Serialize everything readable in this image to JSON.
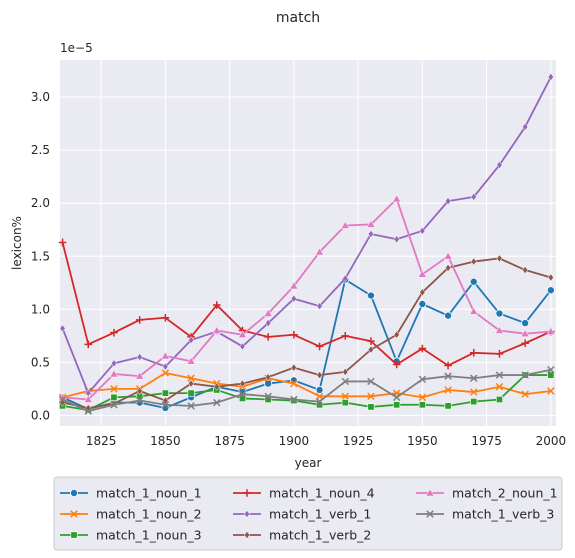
{
  "chart_data": {
    "type": "line",
    "title": "match",
    "xlabel": "year",
    "ylabel": "lexicon%",
    "y_scale_label": "1e−5",
    "xlim": [
      1809,
      2002
    ],
    "ylim": [
      -0.1,
      3.35
    ],
    "x_ticks": [
      1825,
      1850,
      1875,
      1900,
      1925,
      1950,
      1975,
      2000
    ],
    "y_ticks": [
      0.0,
      0.5,
      1.0,
      1.5,
      2.0,
      2.5,
      3.0
    ],
    "y_tick_labels": [
      "0.0",
      "0.5",
      "1.0",
      "1.5",
      "2.0",
      "2.5",
      "3.0"
    ],
    "grid": true,
    "legend_position": "bottom",
    "background": "#eaeaf2",
    "x": [
      1810,
      1820,
      1830,
      1840,
      1850,
      1860,
      1870,
      1880,
      1890,
      1900,
      1910,
      1920,
      1930,
      1940,
      1950,
      1960,
      1970,
      1980,
      1990,
      2000
    ],
    "series": [
      {
        "name": "match_1_noun_1",
        "color": "#1f77b4",
        "marker": "circle",
        "values": [
          0.17,
          0.06,
          0.12,
          0.12,
          0.07,
          0.17,
          0.27,
          0.22,
          0.3,
          0.33,
          0.24,
          1.28,
          1.13,
          0.51,
          1.05,
          0.94,
          1.26,
          0.96,
          0.87,
          1.18
        ]
      },
      {
        "name": "match_1_noun_2",
        "color": "#ff7f0e",
        "marker": "x",
        "values": [
          0.17,
          0.23,
          0.25,
          0.25,
          0.4,
          0.35,
          0.3,
          0.27,
          0.35,
          0.3,
          0.18,
          0.18,
          0.18,
          0.21,
          0.17,
          0.24,
          0.22,
          0.27,
          0.2,
          0.23
        ]
      },
      {
        "name": "match_1_noun_3",
        "color": "#2ca02c",
        "marker": "square",
        "values": [
          0.09,
          0.05,
          0.17,
          0.18,
          0.21,
          0.21,
          0.24,
          0.16,
          0.15,
          0.14,
          0.1,
          0.12,
          0.08,
          0.1,
          0.1,
          0.09,
          0.13,
          0.15,
          0.38,
          0.38
        ]
      },
      {
        "name": "match_1_noun_4",
        "color": "#d62728",
        "marker": "plus",
        "values": [
          1.63,
          0.67,
          0.78,
          0.9,
          0.92,
          0.74,
          1.04,
          0.8,
          0.74,
          0.76,
          0.65,
          0.75,
          0.7,
          0.48,
          0.63,
          0.47,
          0.59,
          0.58,
          0.68,
          0.79
        ]
      },
      {
        "name": "match_1_verb_1",
        "color": "#9467bd",
        "marker": "diamond",
        "values": [
          0.82,
          0.21,
          0.49,
          0.55,
          0.46,
          0.71,
          0.79,
          0.65,
          0.87,
          1.1,
          1.03,
          1.29,
          1.71,
          1.66,
          1.74,
          2.02,
          2.06,
          2.36,
          2.72,
          3.19
        ]
      },
      {
        "name": "match_1_verb_2",
        "color": "#8c564b",
        "marker": "diamond",
        "values": [
          0.12,
          0.07,
          0.11,
          0.23,
          0.14,
          0.3,
          0.27,
          0.3,
          0.36,
          0.45,
          0.38,
          0.41,
          0.62,
          0.76,
          1.16,
          1.39,
          1.45,
          1.48,
          1.37,
          1.3
        ]
      },
      {
        "name": "match_2_noun_1",
        "color": "#e377c2",
        "marker": "triangle",
        "values": [
          0.17,
          0.15,
          0.39,
          0.37,
          0.56,
          0.51,
          0.8,
          0.76,
          0.96,
          1.22,
          1.54,
          1.79,
          1.8,
          2.04,
          1.33,
          1.5,
          0.98,
          0.8,
          0.77,
          0.79
        ]
      },
      {
        "name": "match_1_verb_3",
        "color": "#7f7f7f",
        "marker": "x",
        "values": [
          0.15,
          0.04,
          0.1,
          0.14,
          0.1,
          0.09,
          0.12,
          0.2,
          0.18,
          0.15,
          0.13,
          0.32,
          0.32,
          0.17,
          0.34,
          0.37,
          0.35,
          0.38,
          0.38,
          0.43
        ]
      }
    ]
  }
}
